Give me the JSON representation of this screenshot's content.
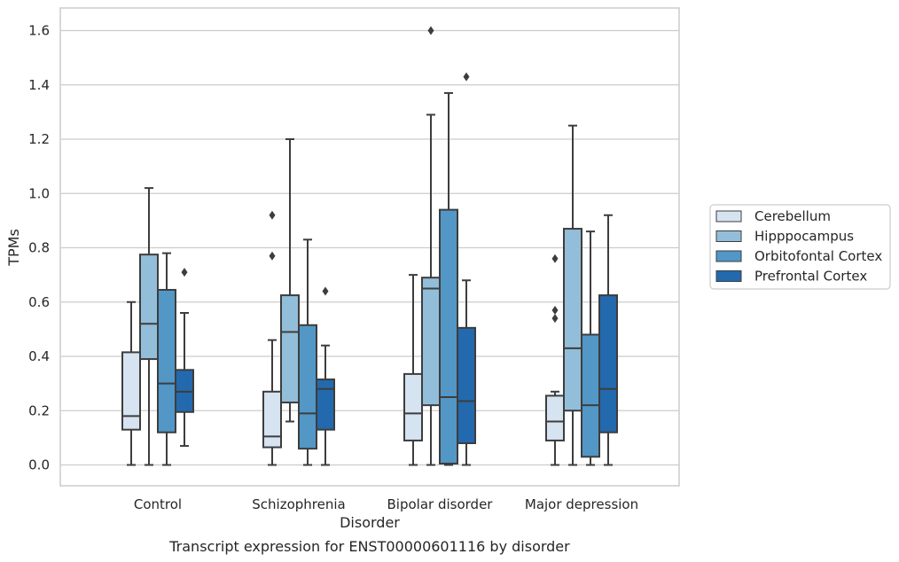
{
  "chart_data": {
    "type": "box",
    "title": "",
    "caption": "Transcript expression for ENST00000601116 by disorder",
    "xlabel": "Disorder",
    "ylabel": "TPMs",
    "ylim": [
      -0.08,
      1.68
    ],
    "yticks": [
      0.0,
      0.2,
      0.4,
      0.6,
      0.8,
      1.0,
      1.2,
      1.4,
      1.6
    ],
    "ytick_labels": [
      "0.0",
      "0.2",
      "0.4",
      "0.6",
      "0.8",
      "1.0",
      "1.2",
      "1.4",
      "1.6"
    ],
    "grid": true,
    "legend_placement": "right",
    "categories": [
      "Control",
      "Schizophrenia",
      "Bipolar disorder",
      "Major depression"
    ],
    "series": [
      {
        "name": "Cerebellum",
        "color": "#d6e3f1",
        "boxes": [
          {
            "whislo": 0.0,
            "q1": 0.13,
            "med": 0.18,
            "q3": 0.415,
            "whishi": 0.6,
            "fliers": []
          },
          {
            "whislo": 0.0,
            "q1": 0.065,
            "med": 0.105,
            "q3": 0.27,
            "whishi": 0.46,
            "fliers": [
              0.77,
              0.92
            ]
          },
          {
            "whislo": 0.0,
            "q1": 0.09,
            "med": 0.19,
            "q3": 0.335,
            "whishi": 0.7,
            "fliers": []
          },
          {
            "whislo": 0.0,
            "q1": 0.09,
            "med": 0.16,
            "q3": 0.255,
            "whishi": 0.27,
            "fliers": [
              0.54,
              0.57,
              0.76
            ]
          }
        ]
      },
      {
        "name": "Hipppocampus",
        "color": "#93bed9",
        "boxes": [
          {
            "whislo": 0.0,
            "q1": 0.39,
            "med": 0.52,
            "q3": 0.775,
            "whishi": 1.02,
            "fliers": []
          },
          {
            "whislo": 0.16,
            "q1": 0.23,
            "med": 0.49,
            "q3": 0.625,
            "whishi": 1.2,
            "fliers": []
          },
          {
            "whislo": 0.0,
            "q1": 0.22,
            "med": 0.65,
            "q3": 0.69,
            "whishi": 1.29,
            "fliers": [
              1.6
            ]
          },
          {
            "whislo": 0.0,
            "q1": 0.2,
            "med": 0.43,
            "q3": 0.87,
            "whishi": 1.25,
            "fliers": []
          }
        ]
      },
      {
        "name": "Orbitofontal Cortex",
        "color": "#5297c6",
        "boxes": [
          {
            "whislo": 0.0,
            "q1": 0.12,
            "med": 0.3,
            "q3": 0.645,
            "whishi": 0.78,
            "fliers": []
          },
          {
            "whislo": 0.0,
            "q1": 0.06,
            "med": 0.19,
            "q3": 0.515,
            "whishi": 0.83,
            "fliers": []
          },
          {
            "whislo": 0.0,
            "q1": 0.005,
            "med": 0.25,
            "q3": 0.94,
            "whishi": 1.37,
            "fliers": []
          },
          {
            "whislo": 0.0,
            "q1": 0.03,
            "med": 0.22,
            "q3": 0.48,
            "whishi": 0.86,
            "fliers": []
          }
        ]
      },
      {
        "name": "Prefrontal Cortex",
        "color": "#2369ad",
        "boxes": [
          {
            "whislo": 0.07,
            "q1": 0.195,
            "med": 0.27,
            "q3": 0.35,
            "whishi": 0.56,
            "fliers": [
              0.71
            ]
          },
          {
            "whislo": 0.0,
            "q1": 0.13,
            "med": 0.28,
            "q3": 0.315,
            "whishi": 0.44,
            "fliers": [
              0.64
            ]
          },
          {
            "whislo": 0.0,
            "q1": 0.08,
            "med": 0.235,
            "q3": 0.505,
            "whishi": 0.68,
            "fliers": [
              1.43
            ]
          },
          {
            "whislo": 0.0,
            "q1": 0.12,
            "med": 0.28,
            "q3": 0.625,
            "whishi": 0.92,
            "fliers": []
          }
        ]
      }
    ]
  }
}
